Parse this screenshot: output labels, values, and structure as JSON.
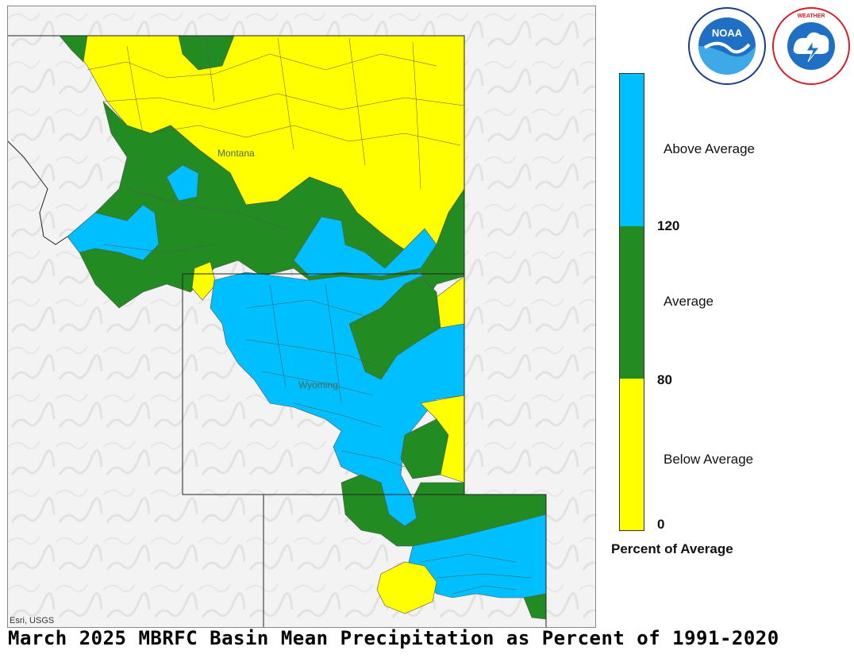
{
  "map": {
    "attribution": "Esri, USGS",
    "state_labels": {
      "montana": "Montana",
      "wyoming": "Wyoming"
    },
    "categories": [
      {
        "name": "Above Average",
        "color": "#00bfff"
      },
      {
        "name": "Average",
        "color": "#228b22"
      },
      {
        "name": "Below Average",
        "color": "#ffff00"
      }
    ]
  },
  "legend": {
    "above_label": "Above Average",
    "average_label": "Average",
    "below_label": "Below Average",
    "tick_120": "120",
    "tick_80": "80",
    "tick_0": "0",
    "title": "Percent of Average",
    "colors": {
      "above": "#00bfff",
      "average": "#228b22",
      "below": "#ffff00"
    }
  },
  "logos": {
    "noaa": {
      "text": "NOAA",
      "ring_text": "NATIONAL OCEANIC AND ATMOSPHERIC ADMINISTRATION · U.S. DEPARTMENT OF COMMERCE",
      "icon": "noaa-logo"
    },
    "nws": {
      "text": "NATIONAL WEATHER SERVICE",
      "icon": "nws-logo"
    }
  },
  "title": "March 2025 MBRFC Basin Mean Precipitation as Percent of 1991-2020"
}
